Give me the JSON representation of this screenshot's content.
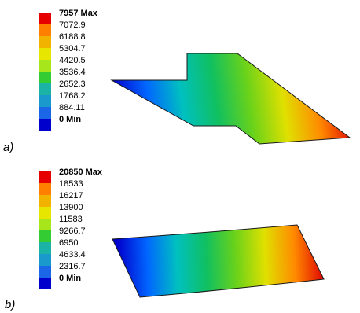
{
  "panels": [
    {
      "id": "a",
      "tag": "a)",
      "legend": {
        "labels": [
          "7957 Max",
          "7072.9",
          "6188.8",
          "5304.7",
          "4420.5",
          "3536.4",
          "2652.3",
          "1768.2",
          "884.11",
          "0 Min"
        ]
      }
    },
    {
      "id": "b",
      "tag": "b)",
      "legend": {
        "labels": [
          "20850 Max",
          "18533",
          "16217",
          "13900",
          "11583",
          "9266.7",
          "6950",
          "4633.4",
          "2316.7",
          "0 Min"
        ]
      }
    }
  ],
  "colorscale": [
    "#e60000",
    "#ff7f00",
    "#f2b300",
    "#e6e600",
    "#a6e61a",
    "#33cc33",
    "#1ab3a6",
    "#1a99cc",
    "#1a66e6",
    "#0000cc"
  ],
  "gradient_stops": [
    "#0000cd",
    "#0066ff",
    "#00c0c0",
    "#10c060",
    "#6ad21a",
    "#e0e000",
    "#ff8a00",
    "#e00000"
  ]
}
